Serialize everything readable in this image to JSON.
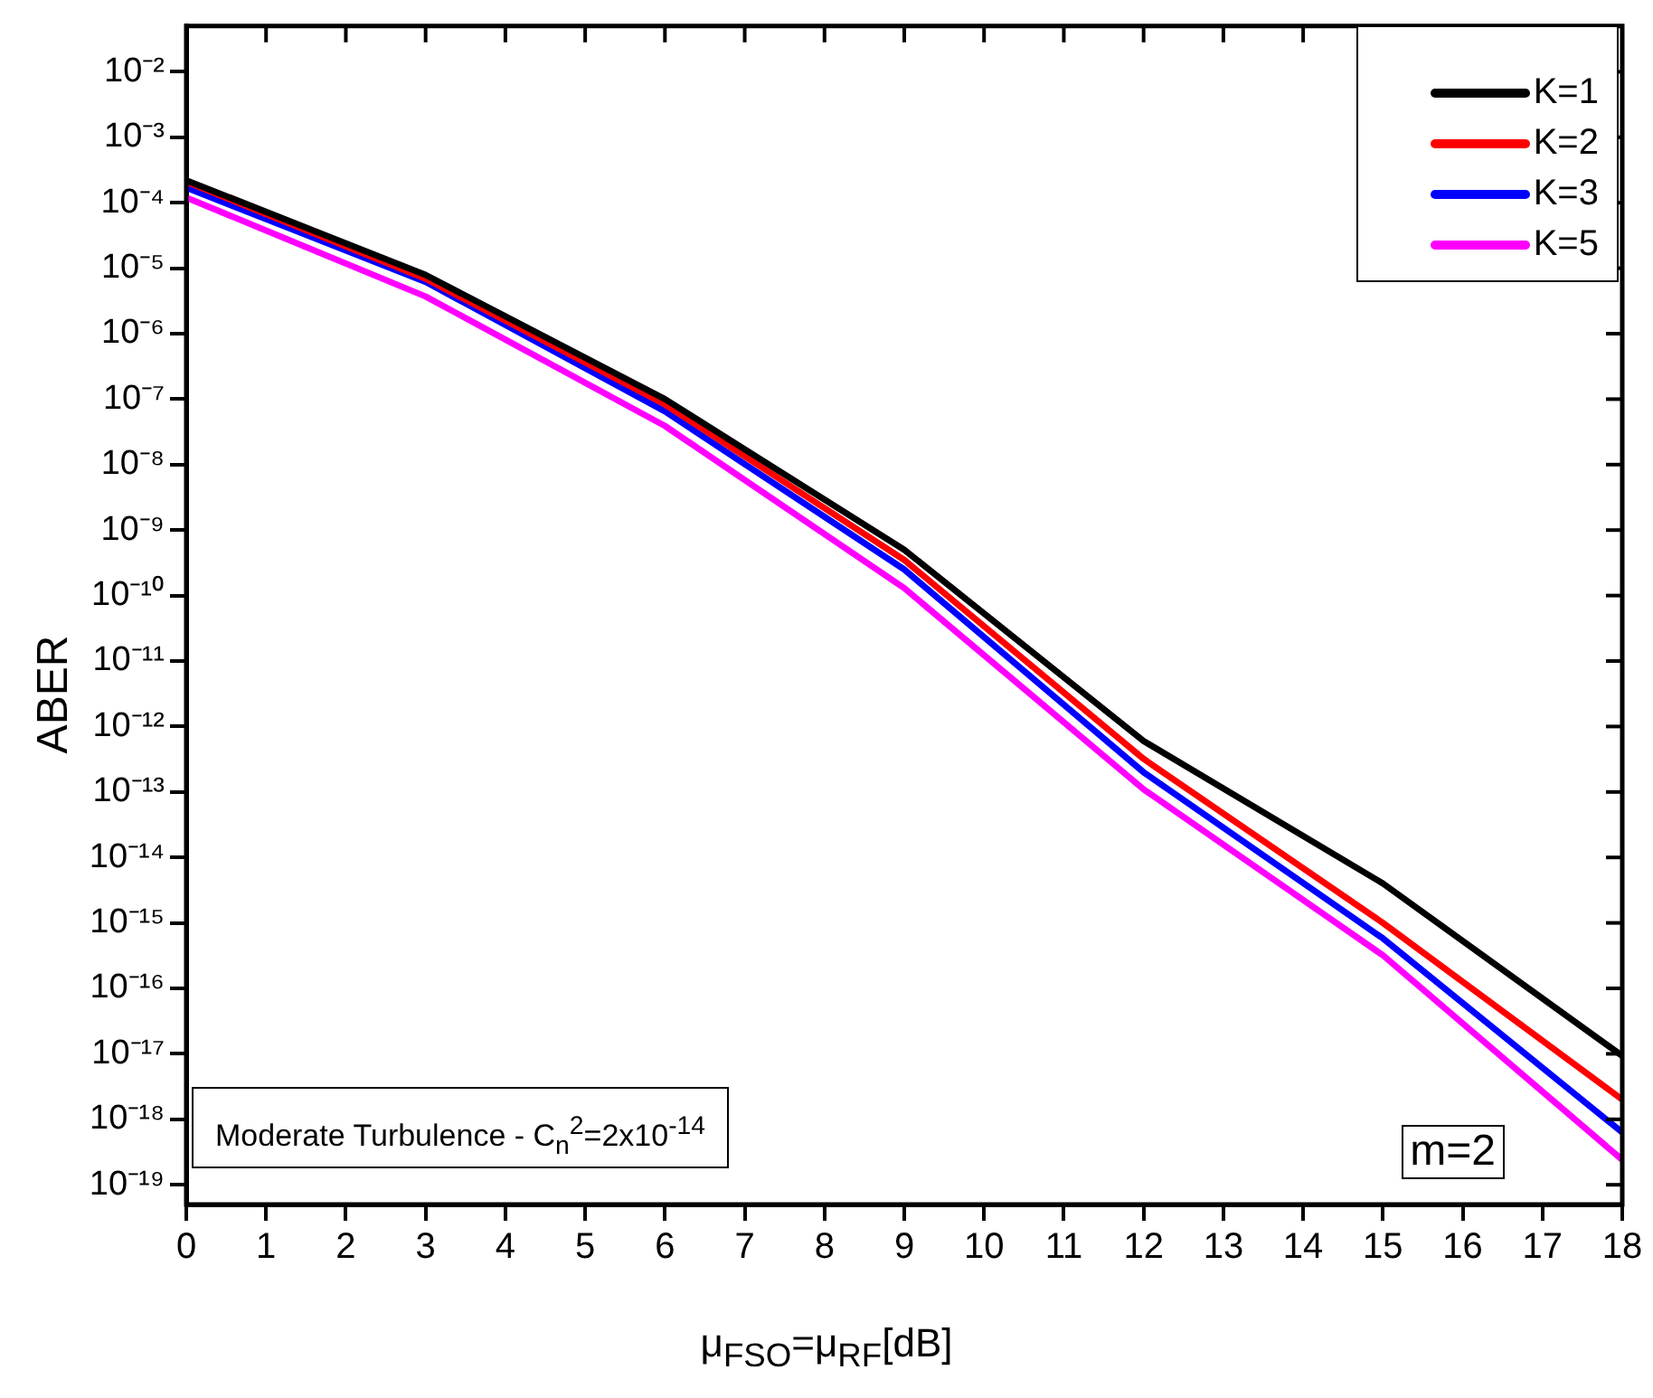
{
  "chart_data": {
    "type": "line",
    "xlabel": "μ$_{FSO}$=μ$_{RF}$[dB]",
    "ylabel": "ABER",
    "x": [
      0,
      3,
      6,
      9,
      12,
      15,
      18
    ],
    "series": [
      {
        "name": "K=1",
        "color": "#000000",
        "values": [
          0.00022,
          7.9e-06,
          1e-07,
          5e-10,
          6e-13,
          4e-15,
          9.3e-18
        ]
      },
      {
        "name": "K=2",
        "color": "#ff0000",
        "values": [
          0.00021,
          6.9e-06,
          8.3e-08,
          3.5e-10,
          3.2e-13,
          1e-15,
          2e-18
        ]
      },
      {
        "name": "K=3",
        "color": "#0000ff",
        "values": [
          0.00017,
          6.2e-06,
          6.5e-08,
          2.5e-10,
          2e-13,
          5.8e-16,
          6.3e-19
        ]
      },
      {
        "name": "K=5",
        "color": "#ff00ff",
        "values": [
          0.00012,
          3.7e-06,
          3.9e-08,
          1.3e-10,
          1.1e-13,
          3.2e-16,
          2.4e-19
        ]
      }
    ],
    "xlim": [
      0,
      18
    ],
    "xticks": [
      0,
      1,
      2,
      3,
      4,
      5,
      6,
      7,
      8,
      9,
      10,
      11,
      12,
      13,
      14,
      15,
      16,
      17,
      18
    ],
    "ylim": [
      5e-20,
      0.05
    ],
    "log": true,
    "yticks": [
      {
        "value": 0.01,
        "label": "10⁻²"
      },
      {
        "value": 0.001,
        "label": "10⁻³"
      },
      {
        "value": 0.0001,
        "label": "10⁻⁴"
      },
      {
        "value": 1e-05,
        "label": "10⁻⁵"
      },
      {
        "value": 1e-06,
        "label": "10⁻⁶"
      },
      {
        "value": 1e-07,
        "label": "10⁻⁷"
      },
      {
        "value": 1e-08,
        "label": "10⁻⁸"
      },
      {
        "value": 1e-09,
        "label": "10⁻⁹"
      },
      {
        "value": 1e-10,
        "label": "10⁻¹⁰"
      },
      {
        "value": 1e-11,
        "label": "10⁻¹¹"
      },
      {
        "value": 1e-12,
        "label": "10⁻¹²"
      },
      {
        "value": 1e-13,
        "label": "10⁻¹³"
      },
      {
        "value": 1e-14,
        "label": "10⁻¹⁴"
      },
      {
        "value": 1e-15,
        "label": "10⁻¹⁵"
      },
      {
        "value": 1e-16,
        "label": "10⁻¹⁶"
      },
      {
        "value": 1e-17,
        "label": "10⁻¹⁷"
      },
      {
        "value": 1e-18,
        "label": "10⁻¹⁸"
      },
      {
        "value": 1e-19,
        "label": "10⁻¹⁹"
      }
    ],
    "grid": false,
    "legend": "top right",
    "marker": "none",
    "line_style": "solid",
    "annotations": [
      "Moderate Turbulence - C$_{n}$$^{2}$=2x10$^{-14}$",
      "m=2"
    ]
  }
}
